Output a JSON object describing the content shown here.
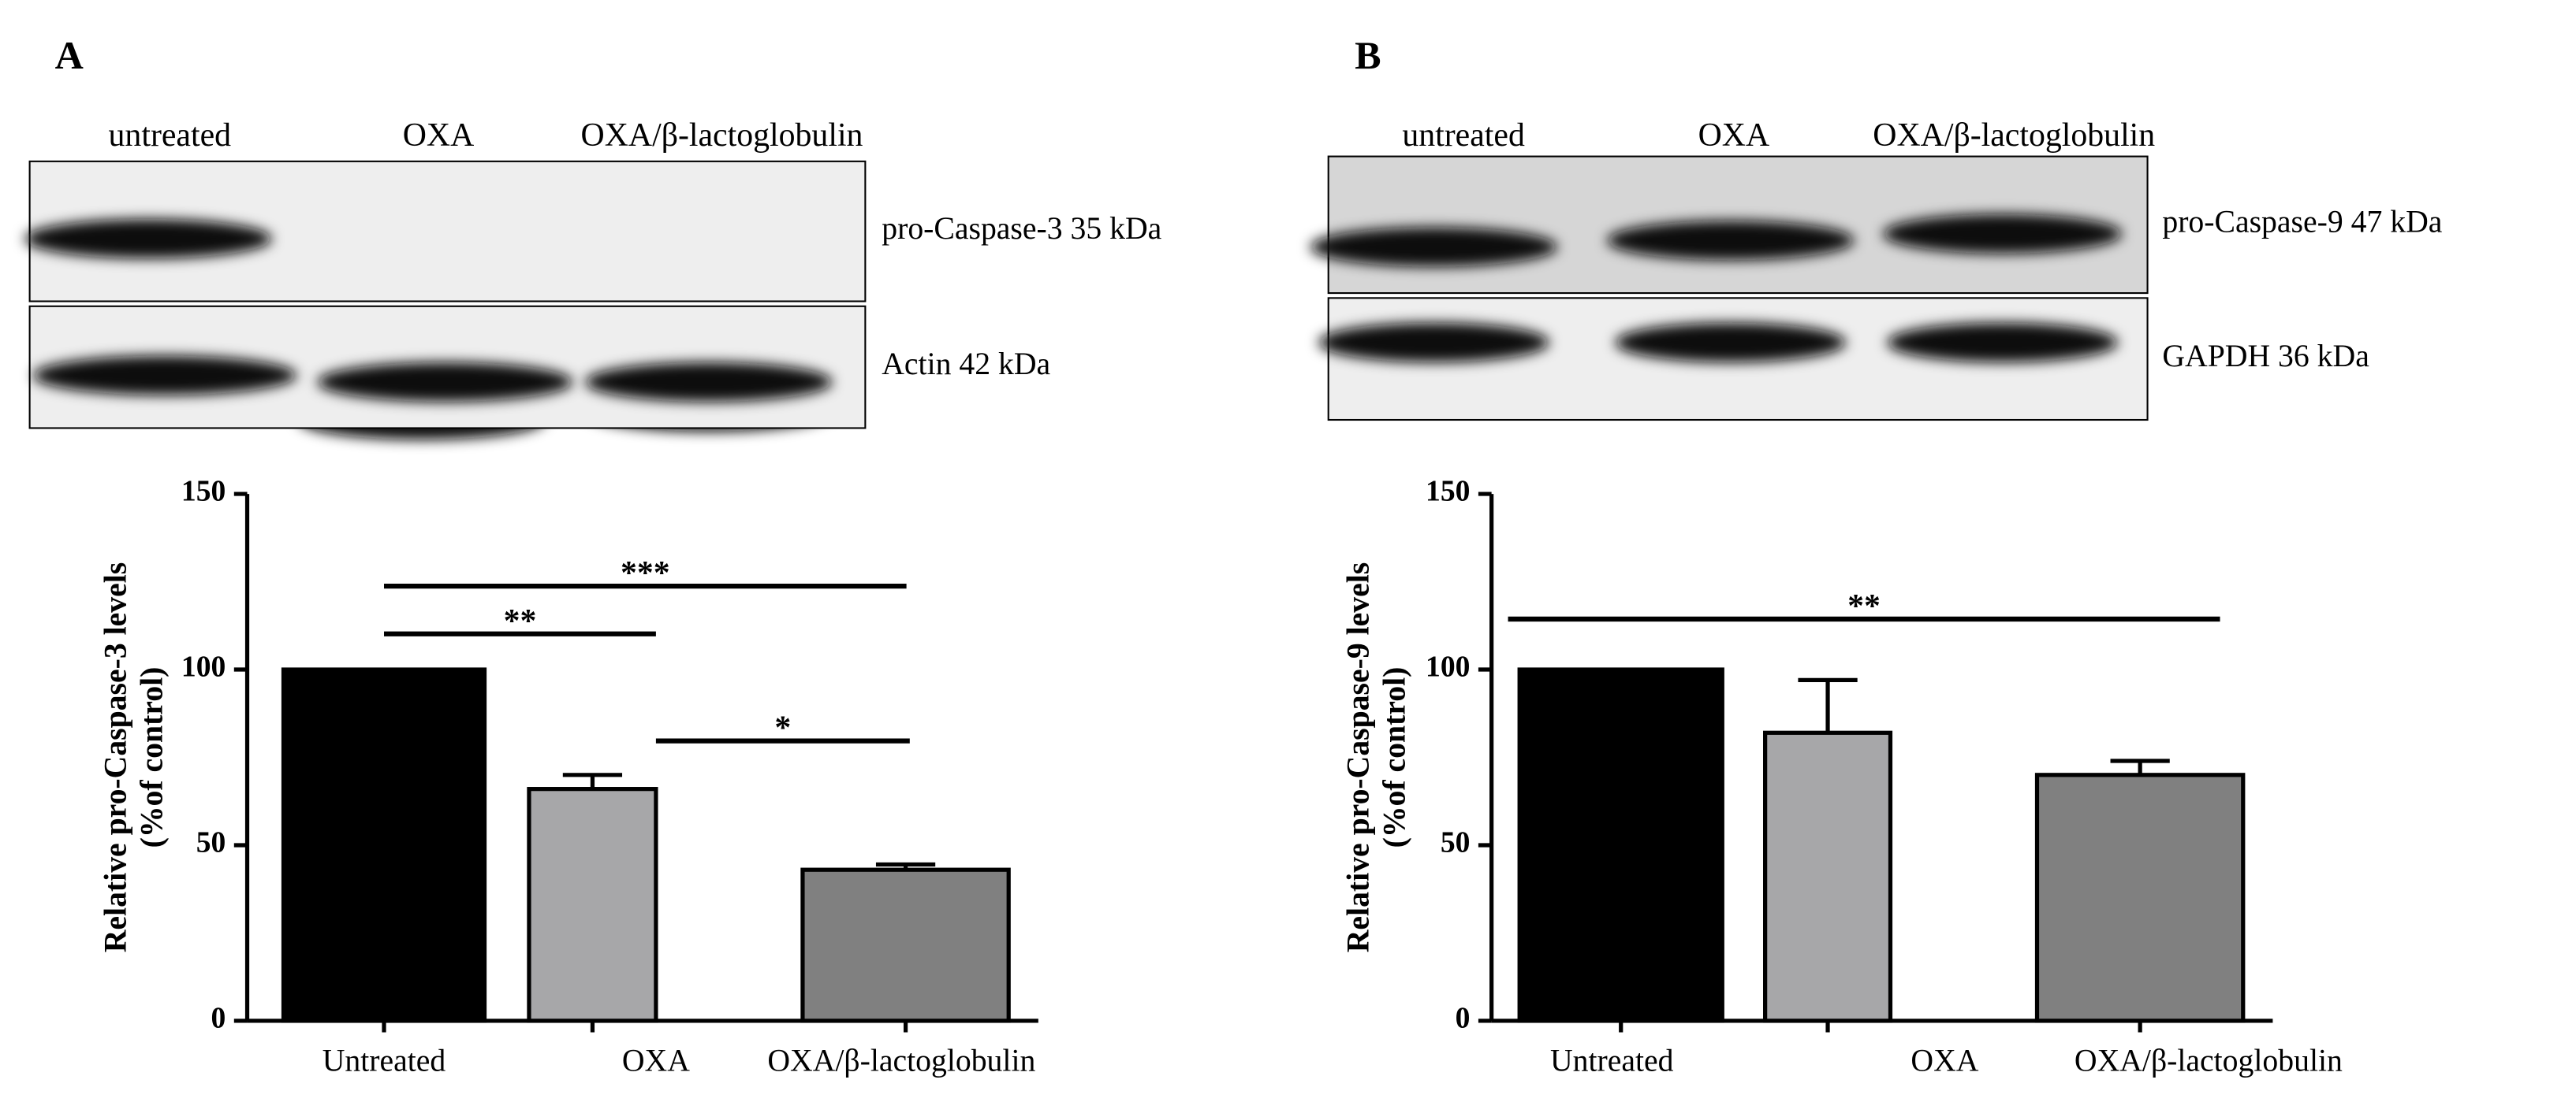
{
  "chart_data": [
    {
      "type": "bar",
      "panel": "A",
      "blot_lanes": [
        "untreated",
        "OXA",
        "OXA/β-lactoglobulin"
      ],
      "blot_rows": [
        "pro-Caspase-3  35 kDa",
        "Actin 42 kDa"
      ],
      "ylabel": [
        "Relative pro-Caspase-3 levels",
        "(%of control)"
      ],
      "categories": [
        "Untreated",
        "OXA",
        "OXA/β-lactoglobulin"
      ],
      "values": [
        100,
        66,
        43
      ],
      "errors": [
        0,
        4,
        1.5
      ],
      "colors": [
        "#000000",
        "#a7a7a9",
        "#808080"
      ],
      "ylim": [
        0,
        150
      ],
      "yticks": [
        0,
        50,
        100,
        150
      ],
      "significance": [
        "***",
        "**",
        "*"
      ]
    },
    {
      "type": "bar",
      "panel": "B",
      "blot_lanes": [
        "untreated",
        "OXA",
        "OXA/β-lactoglobulin"
      ],
      "blot_rows": [
        "pro-Caspase-9  47 kDa",
        "GAPDH 36 kDa"
      ],
      "ylabel": [
        "Relative pro-Caspase-9 levels",
        "(%of control)"
      ],
      "categories": [
        "Untreated",
        "OXA",
        "OXA/β-lactoglobulin"
      ],
      "values": [
        100,
        82,
        70
      ],
      "errors": [
        0,
        15,
        4
      ],
      "colors": [
        "#000000",
        "#a7a7a9",
        "#808080"
      ],
      "ylim": [
        0,
        150
      ],
      "yticks": [
        0,
        50,
        100,
        150
      ],
      "significance": [
        "**"
      ]
    }
  ]
}
